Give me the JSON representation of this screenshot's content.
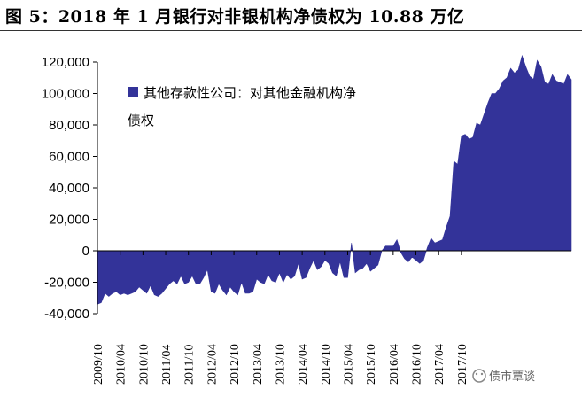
{
  "title": "图 5：2018 年 1 月银行对非银机构净债权为 10.88 万亿",
  "watermark": "债市覃谈",
  "colors": {
    "series": "#333399",
    "axis": "#000000",
    "background": "#ffffff"
  },
  "chart_data": {
    "type": "area",
    "ylim": [
      -40000,
      120000
    ],
    "yticks": [
      120000,
      100000,
      80000,
      60000,
      40000,
      20000,
      0,
      -20000,
      -40000
    ],
    "ytick_labels": [
      "120,000",
      "100,000",
      "80,000",
      "60,000",
      "40,000",
      "20,000",
      "0",
      "-20,000",
      "-40,000"
    ],
    "xtick_labels": [
      "2009/10",
      "2010/04",
      "2010/10",
      "2011/04",
      "2011/10",
      "2012/04",
      "2012/10",
      "2013/04",
      "2013/10",
      "2014/04",
      "2014/10",
      "2015/04",
      "2015/10",
      "2016/04",
      "2016/10",
      "2017/04",
      "2017/10"
    ],
    "x_start": "2009/10",
    "x_end": "2018/01",
    "legend": {
      "position": "top-left",
      "label": "其他存款性公司：对其他金融机构净债权"
    },
    "series": [
      {
        "name": "其他存款性公司：对其他金融机构净债权",
        "values": [
          -34000,
          -33000,
          -27000,
          -29000,
          -27000,
          -26000,
          -28000,
          -27000,
          -28000,
          -27000,
          -26000,
          -23000,
          -25000,
          -27000,
          -22000,
          -28000,
          -29000,
          -27000,
          -24000,
          -21000,
          -19000,
          -21000,
          -16000,
          -21000,
          -20000,
          -16000,
          -21000,
          -21000,
          -17000,
          -12000,
          -26000,
          -27000,
          -21000,
          -25000,
          -28000,
          -23000,
          -26000,
          -28000,
          -20000,
          -27000,
          -27000,
          -26000,
          -18000,
          -20000,
          -21000,
          -15000,
          -19000,
          -20000,
          -14000,
          -20000,
          -15000,
          -18000,
          -16000,
          -8000,
          -18000,
          -17000,
          -11000,
          -6000,
          -12000,
          -10000,
          -6000,
          -8000,
          -14000,
          -16000,
          -7000,
          -17000,
          -17000,
          5000,
          -14000,
          -12000,
          -11000,
          -8000,
          -13000,
          -11000,
          -9000,
          0,
          3000,
          3000,
          3000,
          7000,
          -1000,
          -5000,
          -7000,
          -4000,
          -6000,
          -8000,
          -6000,
          2000,
          8000,
          5000,
          6000,
          7000,
          15000,
          22000,
          57000,
          55000,
          73000,
          74000,
          71000,
          72000,
          81000,
          80000,
          87000,
          94000,
          100000,
          100000,
          103000,
          108000,
          110000,
          116000,
          113000,
          115000,
          124000,
          117000,
          111000,
          109000,
          121000,
          117000,
          107000,
          106000,
          112000,
          108000,
          107000,
          106000,
          112000,
          108800
        ]
      }
    ]
  }
}
